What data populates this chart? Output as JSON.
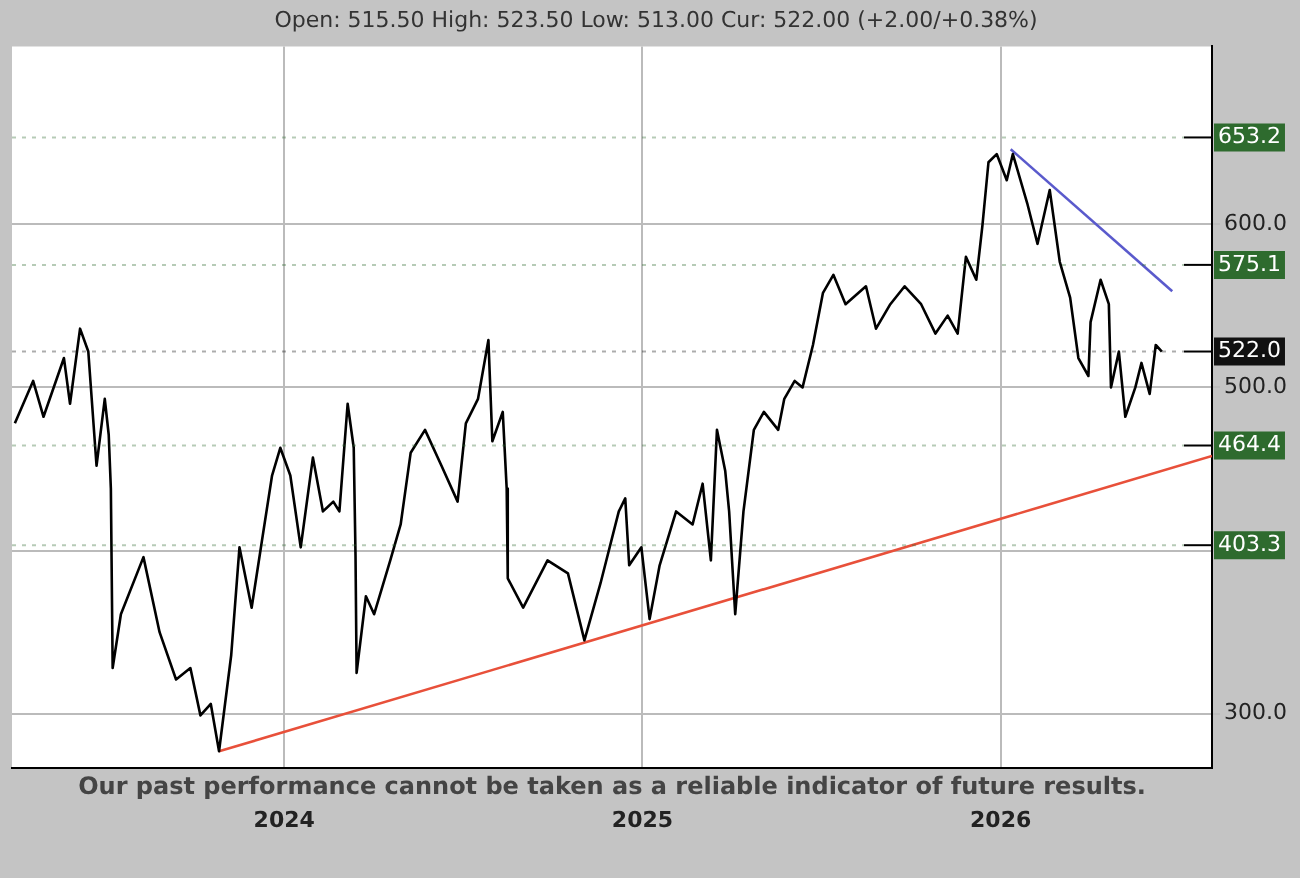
{
  "chart_data": {
    "type": "line",
    "subtitle": "Open: 515.50 High: 523.50 Low: 513.00 Cur: 522.00 (+2.00/+0.38%)",
    "annotations": [
      "Our past performance cannot be taken as a reliable indicator of future results."
    ],
    "xlim": [
      2023.24,
      2026.59
    ],
    "xticks": [
      2024,
      2025,
      2026
    ],
    "ylim": [
      267,
      709
    ],
    "yticks": [
      {
        "value": 300,
        "label": "300.0"
      },
      {
        "value": 400,
        "label": null
      },
      {
        "value": 500,
        "label": "500.0"
      },
      {
        "value": 600,
        "label": "600.0"
      }
    ],
    "grid": true,
    "legend": false,
    "marker": "none",
    "line_style": "solid",
    "series": [
      {
        "color": "#000000",
        "x": [
          2023.248,
          2023.299,
          2023.328,
          2023.385,
          2023.402,
          2023.43,
          2023.453,
          2023.476,
          2023.499,
          2023.51,
          2023.516,
          2023.521,
          2023.544,
          2023.607,
          2023.652,
          2023.698,
          2023.738,
          2023.766,
          2023.795,
          2023.818,
          2023.852,
          2023.875,
          2023.909,
          2023.937,
          2023.966,
          2023.989,
          2024.017,
          2024.046,
          2024.08,
          2024.108,
          2024.137,
          2024.154,
          2024.177,
          2024.194,
          2024.199,
          2024.202,
          2024.228,
          2024.251,
          2024.296,
          2024.325,
          2024.353,
          2024.393,
          2024.439,
          2024.484,
          2024.507,
          2024.541,
          2024.57,
          2024.581,
          2024.61,
          2024.621,
          2024.624,
          2024.667,
          2024.735,
          2024.792,
          2024.838,
          2024.883,
          2024.934,
          2024.952,
          2024.963,
          2024.997,
          2025.02,
          2025.048,
          2025.094,
          2025.14,
          2025.168,
          2025.191,
          2025.208,
          2025.231,
          2025.242,
          2025.259,
          2025.282,
          2025.311,
          2025.339,
          2025.379,
          2025.396,
          2025.425,
          2025.447,
          2025.476,
          2025.504,
          2025.533,
          2025.567,
          2025.624,
          2025.652,
          2025.692,
          2025.732,
          2025.778,
          2025.818,
          2025.852,
          2025.88,
          2025.903,
          2025.932,
          2025.949,
          2025.966,
          2025.989,
          2026.017,
          2026.034,
          2026.074,
          2026.103,
          2026.137,
          2026.165,
          2026.194,
          2026.217,
          2026.245,
          2026.251,
          2026.279,
          2026.302,
          2026.308,
          2026.33,
          2026.348,
          2026.376,
          2026.393,
          2026.416,
          2026.433,
          2026.45
        ],
        "values": [
          478,
          504,
          482,
          518,
          490,
          536,
          522,
          452,
          493,
          471,
          438,
          328,
          361,
          396,
          350,
          321,
          328,
          299,
          306,
          277,
          336,
          402,
          365,
          405,
          446,
          463,
          446,
          402,
          457,
          424,
          430,
          424,
          490,
          463,
          397,
          325,
          372,
          361,
          394,
          416,
          460,
          474,
          452,
          430,
          478,
          493,
          529,
          467,
          485,
          438,
          383,
          365,
          394,
          386,
          345,
          380,
          424,
          432,
          391,
          402,
          358,
          391,
          424,
          416,
          441,
          394,
          474,
          449,
          424,
          361,
          424,
          474,
          485,
          474,
          493,
          504,
          500,
          526,
          558,
          569,
          551,
          562,
          536,
          551,
          562,
          551,
          533,
          544,
          533,
          580,
          566,
          599,
          638,
          643,
          627,
          643,
          613,
          588,
          621,
          577,
          555,
          518,
          507,
          540,
          566,
          551,
          500,
          522,
          482,
          500,
          515,
          496,
          526,
          522
        ]
      },
      {
        "color": "#e8503a",
        "x": [
          2023.818,
          2026.59
        ],
        "values": [
          277,
          458
        ]
      },
      {
        "color": "#5a5acc",
        "x": [
          2026.028,
          2026.479
        ],
        "values": [
          646,
          559
        ]
      }
    ],
    "ref_lines": [
      {
        "axis": "y",
        "value": 653.2,
        "label": "653.2",
        "color": "#2e6b2e"
      },
      {
        "axis": "y",
        "value": 575.1,
        "label": "575.1",
        "color": "#2e6b2e"
      },
      {
        "axis": "y",
        "value": 522,
        "label": "522.0",
        "color": "#111111"
      },
      {
        "axis": "y",
        "value": 464.4,
        "label": "464.4",
        "color": "#2e6b2e"
      },
      {
        "axis": "y",
        "value": 403.3,
        "label": "403.3",
        "color": "#2e6b2e"
      }
    ]
  }
}
